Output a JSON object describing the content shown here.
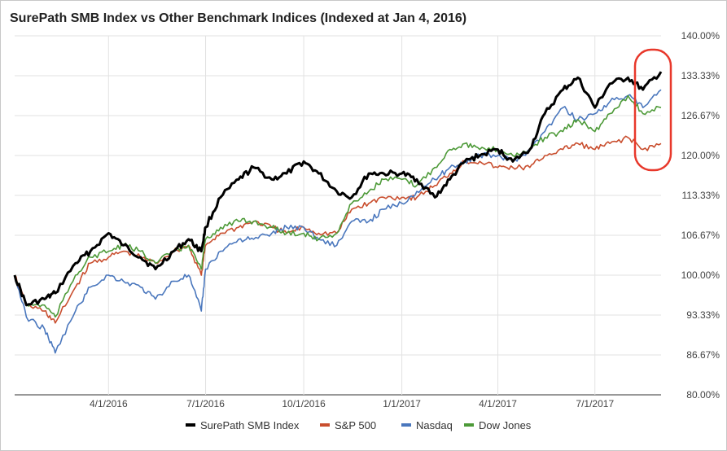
{
  "chart_data": {
    "type": "line",
    "title": "SurePath SMB Index vs Other Benchmark Indices (Indexed at Jan 4, 2016)",
    "xlabel": "",
    "ylabel": "",
    "ylim": [
      80,
      140
    ],
    "y_ticks": [
      "140.00%",
      "133.33%",
      "126.67%",
      "120.00%",
      "113.33%",
      "106.67%",
      "100.00%",
      "93.33%",
      "86.67%",
      "80.00%"
    ],
    "y_tick_values": [
      140,
      133.33,
      126.67,
      120,
      113.33,
      106.67,
      100,
      93.33,
      86.67,
      80
    ],
    "x_ticks": [
      "4/1/2016",
      "7/1/2016",
      "10/1/2016",
      "1/1/2017",
      "4/1/2017",
      "7/1/2017"
    ],
    "x_tick_dates": [
      "2016-04-01",
      "2016-07-01",
      "2016-10-01",
      "2017-01-01",
      "2017-04-01",
      "2017-07-01"
    ],
    "xlim": [
      "2016-01-04",
      "2017-09-01"
    ],
    "grid": true,
    "legend_position": "bottom",
    "annotation": {
      "shape": "rounded-rectangle",
      "color": "#e8382b",
      "encloses": "series endpoints at right edge"
    },
    "series": [
      {
        "name": "SurePath SMB Index",
        "color": "#000000",
        "x": [
          "2016-01-04",
          "2016-01-15",
          "2016-02-01",
          "2016-02-11",
          "2016-03-01",
          "2016-03-15",
          "2016-04-01",
          "2016-04-15",
          "2016-05-01",
          "2016-05-15",
          "2016-06-01",
          "2016-06-15",
          "2016-06-27",
          "2016-07-01",
          "2016-07-15",
          "2016-08-01",
          "2016-08-15",
          "2016-09-01",
          "2016-09-15",
          "2016-10-01",
          "2016-10-15",
          "2016-11-01",
          "2016-11-15",
          "2016-12-01",
          "2016-12-15",
          "2017-01-01",
          "2017-01-15",
          "2017-02-01",
          "2017-02-15",
          "2017-03-01",
          "2017-03-15",
          "2017-04-01",
          "2017-04-15",
          "2017-05-01",
          "2017-05-15",
          "2017-06-01",
          "2017-06-15",
          "2017-07-01",
          "2017-07-15",
          "2017-08-01",
          "2017-08-15",
          "2017-09-01"
        ],
        "values": [
          100,
          95,
          96,
          97,
          102,
          104,
          107,
          105,
          103,
          101,
          104,
          106,
          104,
          108,
          113,
          116,
          118,
          116,
          117,
          119,
          117,
          114,
          113,
          117,
          117,
          117,
          116,
          113,
          116,
          119,
          120,
          121,
          119,
          121,
          127,
          131,
          133,
          128,
          132,
          133,
          131,
          134
        ]
      },
      {
        "name": "S&P 500",
        "color": "#c94e2e",
        "x": [
          "2016-01-04",
          "2016-01-15",
          "2016-02-01",
          "2016-02-11",
          "2016-03-01",
          "2016-03-15",
          "2016-04-01",
          "2016-04-15",
          "2016-05-01",
          "2016-05-15",
          "2016-06-01",
          "2016-06-15",
          "2016-06-27",
          "2016-07-01",
          "2016-07-15",
          "2016-08-01",
          "2016-08-15",
          "2016-09-01",
          "2016-09-15",
          "2016-10-01",
          "2016-10-15",
          "2016-11-01",
          "2016-11-15",
          "2016-12-01",
          "2016-12-15",
          "2017-01-01",
          "2017-01-15",
          "2017-02-01",
          "2017-02-15",
          "2017-03-01",
          "2017-03-15",
          "2017-04-01",
          "2017-04-15",
          "2017-05-01",
          "2017-05-15",
          "2017-06-01",
          "2017-06-15",
          "2017-07-01",
          "2017-07-15",
          "2017-08-01",
          "2017-08-15",
          "2017-09-01"
        ],
        "values": [
          100,
          95,
          94,
          92,
          98,
          102,
          103,
          104,
          103,
          102,
          104,
          105,
          100,
          105,
          107,
          108,
          109,
          108,
          107,
          108,
          107,
          107,
          111,
          112,
          113,
          113,
          113,
          115,
          117,
          119,
          119,
          118,
          118,
          118,
          120,
          121,
          122,
          121,
          122,
          123,
          121,
          122
        ]
      },
      {
        "name": "Nasdaq",
        "color": "#4a77bd",
        "x": [
          "2016-01-04",
          "2016-01-15",
          "2016-02-01",
          "2016-02-11",
          "2016-03-01",
          "2016-03-15",
          "2016-04-01",
          "2016-04-15",
          "2016-05-01",
          "2016-05-15",
          "2016-06-01",
          "2016-06-15",
          "2016-06-27",
          "2016-07-01",
          "2016-07-15",
          "2016-08-01",
          "2016-08-15",
          "2016-09-01",
          "2016-09-15",
          "2016-10-01",
          "2016-10-15",
          "2016-11-01",
          "2016-11-15",
          "2016-12-01",
          "2016-12-15",
          "2017-01-01",
          "2017-01-15",
          "2017-02-01",
          "2017-02-15",
          "2017-03-01",
          "2017-03-15",
          "2017-04-01",
          "2017-04-15",
          "2017-05-01",
          "2017-05-15",
          "2017-06-01",
          "2017-06-15",
          "2017-07-01",
          "2017-07-15",
          "2017-08-01",
          "2017-08-15",
          "2017-09-01"
        ],
        "values": [
          100,
          93,
          91,
          87,
          94,
          98,
          100,
          99,
          98,
          96,
          99,
          100,
          94,
          101,
          104,
          106,
          106,
          107,
          108,
          108,
          106,
          105,
          109,
          109,
          111,
          112,
          114,
          116,
          118,
          119,
          120,
          120,
          119,
          121,
          124,
          128,
          126,
          127,
          129,
          130,
          128,
          131
        ]
      },
      {
        "name": "Dow Jones",
        "color": "#4d9a38",
        "x": [
          "2016-01-04",
          "2016-01-15",
          "2016-02-01",
          "2016-02-11",
          "2016-03-01",
          "2016-03-15",
          "2016-04-01",
          "2016-04-15",
          "2016-05-01",
          "2016-05-15",
          "2016-06-01",
          "2016-06-15",
          "2016-06-27",
          "2016-07-01",
          "2016-07-15",
          "2016-08-01",
          "2016-08-15",
          "2016-09-01",
          "2016-09-15",
          "2016-10-01",
          "2016-10-15",
          "2016-11-01",
          "2016-11-15",
          "2016-12-01",
          "2016-12-15",
          "2017-01-01",
          "2017-01-15",
          "2017-02-01",
          "2017-02-15",
          "2017-03-01",
          "2017-03-15",
          "2017-04-01",
          "2017-04-15",
          "2017-05-01",
          "2017-05-15",
          "2017-06-01",
          "2017-06-15",
          "2017-07-01",
          "2017-07-15",
          "2017-08-01",
          "2017-08-15",
          "2017-09-01"
        ],
        "values": [
          100,
          95,
          95,
          93,
          100,
          103,
          104,
          105,
          104,
          102,
          104,
          105,
          101,
          106,
          108,
          109,
          109,
          108,
          107,
          107,
          106,
          107,
          112,
          114,
          116,
          116,
          115,
          118,
          121,
          122,
          121,
          121,
          120,
          121,
          123,
          124,
          126,
          124,
          127,
          130,
          127,
          128
        ]
      }
    ]
  }
}
